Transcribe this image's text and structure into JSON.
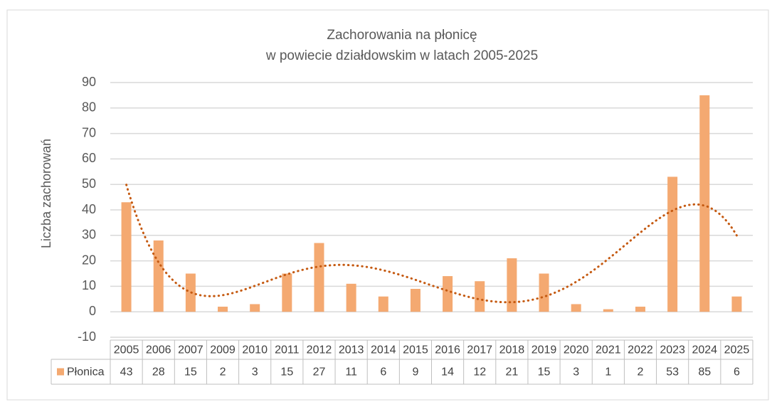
{
  "chart_data": {
    "type": "bar",
    "title": [
      "Zachorowania na płonicę",
      "w powiecie działdowskim w latach 2005-2025"
    ],
    "y_label": "Liczba zachorowań",
    "categories": [
      "2005",
      "2006",
      "2007",
      "2009",
      "2010",
      "2011",
      "2012",
      "2013",
      "2014",
      "2015",
      "2016",
      "2017",
      "2018",
      "2019",
      "2020",
      "2021",
      "2022",
      "2023",
      "2024",
      "2025"
    ],
    "series": [
      {
        "name": "Płonica",
        "color": "#f4a971",
        "values": [
          43,
          28,
          15,
          2,
          3,
          15,
          27,
          11,
          6,
          9,
          14,
          12,
          21,
          15,
          3,
          1,
          2,
          53,
          85,
          6
        ]
      }
    ],
    "trendline": {
      "kind": "polynomial",
      "order": 5,
      "color": "#c55a11"
    },
    "ylim": [
      -10,
      90
    ],
    "yticks": [
      -10,
      0,
      10,
      20,
      30,
      40,
      50,
      60,
      70,
      80,
      90
    ],
    "grid": true
  }
}
